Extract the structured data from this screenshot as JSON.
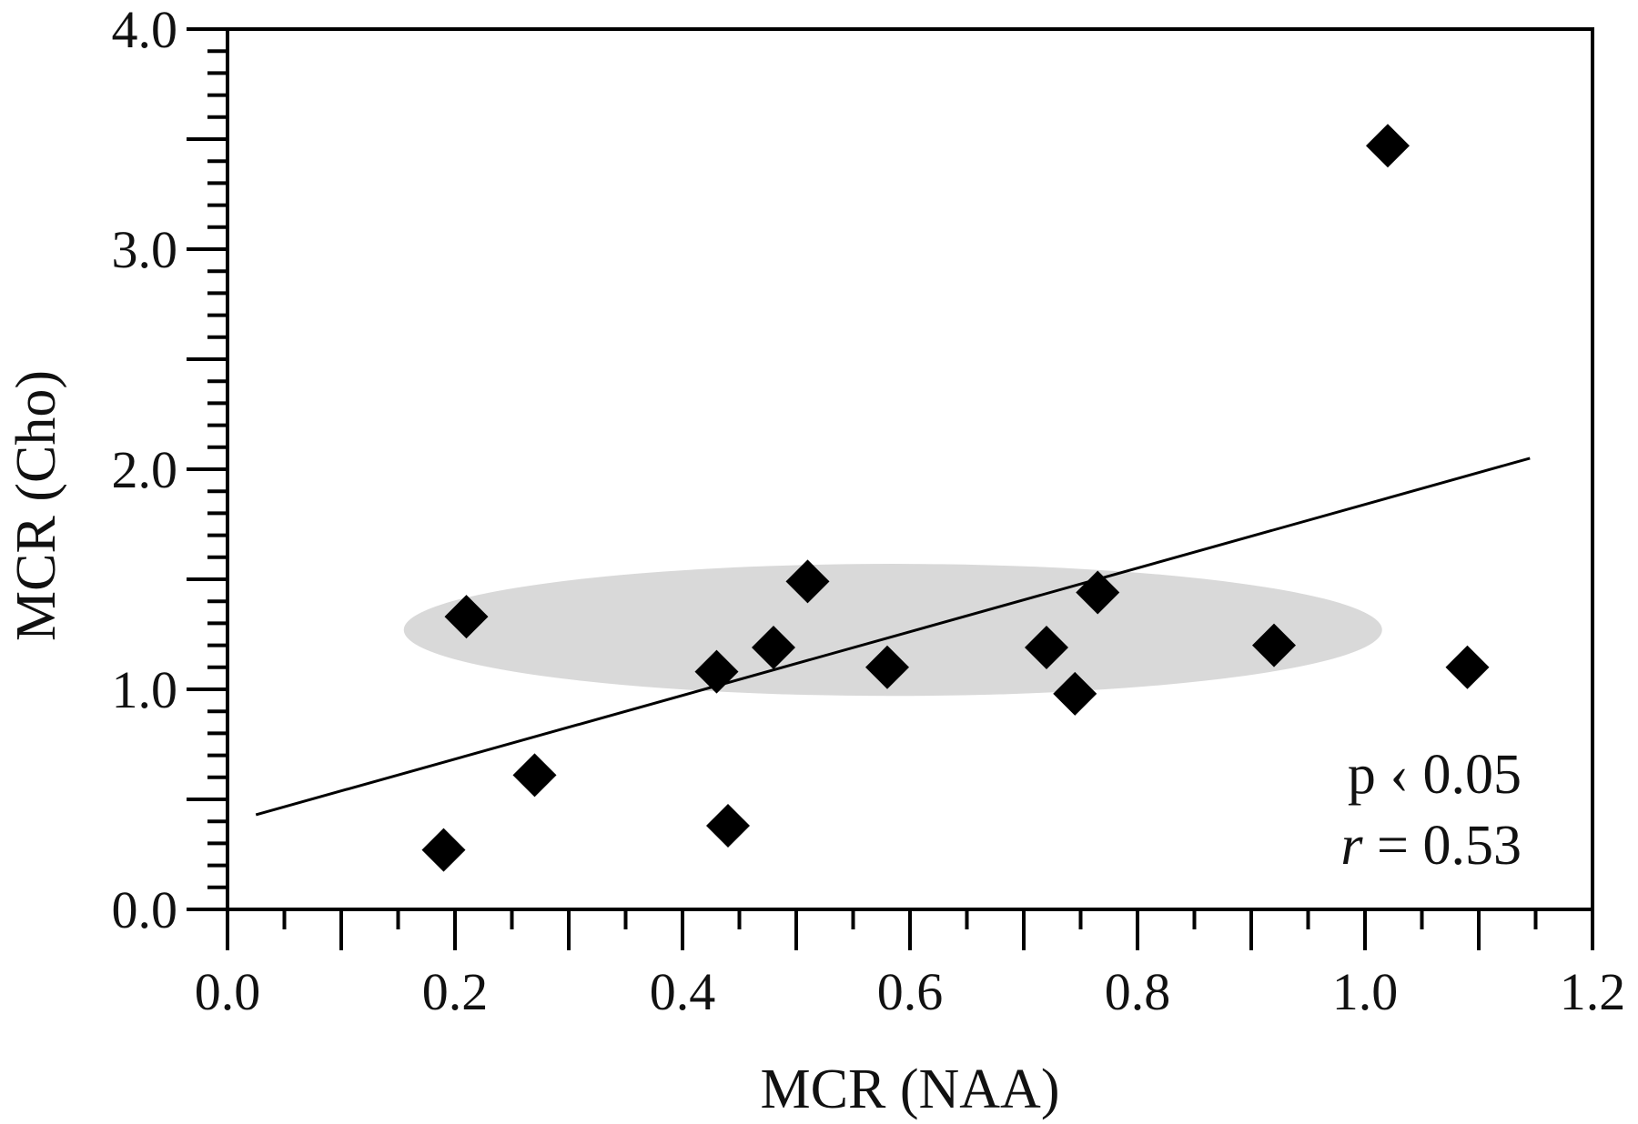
{
  "chart_data": {
    "type": "scatter",
    "title": "",
    "xlabel": "MCR (NAA)",
    "ylabel": "MCR (Cho)",
    "xlim": [
      0.0,
      1.2
    ],
    "ylim": [
      0.0,
      4.0
    ],
    "x_ticks": [
      "0.0",
      "0.2",
      "0.4",
      "0.6",
      "0.8",
      "1.0",
      "1.2"
    ],
    "y_ticks": [
      "0.0",
      "1.0",
      "2.0",
      "3.0",
      "4.0"
    ],
    "grid": false,
    "marker": "diamond",
    "marker_color": "#000000",
    "points": [
      {
        "x": 0.19,
        "y": 0.27
      },
      {
        "x": 0.21,
        "y": 1.33
      },
      {
        "x": 0.27,
        "y": 0.61
      },
      {
        "x": 0.43,
        "y": 1.08
      },
      {
        "x": 0.44,
        "y": 0.38
      },
      {
        "x": 0.48,
        "y": 1.19
      },
      {
        "x": 0.51,
        "y": 1.49
      },
      {
        "x": 0.58,
        "y": 1.1
      },
      {
        "x": 0.72,
        "y": 1.19
      },
      {
        "x": 0.745,
        "y": 0.98
      },
      {
        "x": 0.765,
        "y": 1.44
      },
      {
        "x": 0.92,
        "y": 1.2
      },
      {
        "x": 1.02,
        "y": 3.47
      },
      {
        "x": 1.09,
        "y": 1.1
      }
    ],
    "regression_line": {
      "x": [
        0.025,
        1.145
      ],
      "y": [
        0.43,
        2.05
      ]
    },
    "shaded_region": {
      "shape": "ellipse",
      "color": "#d9d9d9",
      "center_x": 0.585,
      "center_y": 1.27,
      "half_width_x": 0.43,
      "half_height_y": 0.3
    },
    "annotations": [
      "p ‹ 0.05",
      "r = 0.53"
    ]
  }
}
